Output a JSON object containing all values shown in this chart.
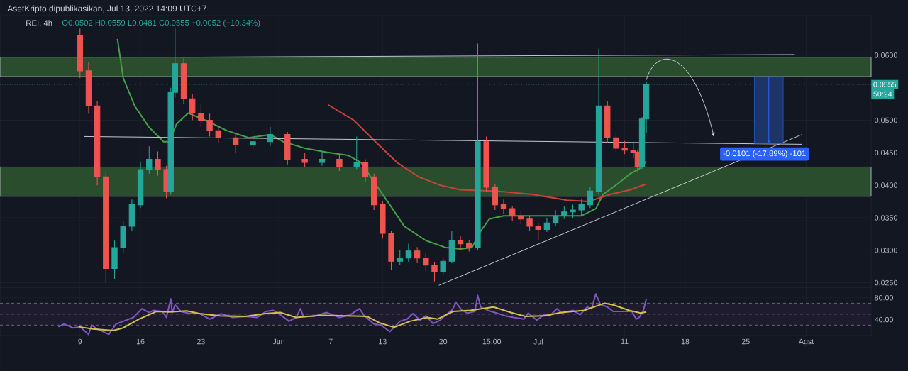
{
  "chart_data": [
    {
      "type": "candlestick",
      "title": "AsetKripto dipublikasikan, Jul 13, 2022 14:09 UTC+7",
      "subtitle": "REI, 4h",
      "annotations": [
        "O0.0502 H0.0559 L0.0481 C0.0555 +0.0052 (+10.34%)",
        "50:24",
        {
          "text": "-0.0101 (-17.89%) -101",
          "x": "2022-07-27T04:00",
          "y": 0.0448
        }
      ],
      "xlim": [
        "2022-04-29T18:00",
        "2022-08-08T12:00"
      ],
      "xticks": [
        {
          "value": "2022-05-09",
          "label": null
        },
        {
          "value": "2022-05-16",
          "label": null
        },
        {
          "value": "2022-05-23",
          "label": null
        },
        {
          "value": "2022-06-01",
          "label": null
        },
        {
          "value": "2022-06-07",
          "label": null
        },
        {
          "value": "2022-06-13",
          "label": null
        },
        {
          "value": "2022-06-20",
          "label": null
        },
        {
          "value": "2022-06-25T15:00",
          "label": null
        },
        {
          "value": "2022-07-01",
          "label": null
        },
        {
          "value": "2022-07-11",
          "label": null
        },
        {
          "value": "2022-07-18",
          "label": null
        },
        {
          "value": "2022-07-25",
          "label": null
        },
        {
          "value": "2022-08-01",
          "label": null
        }
      ],
      "ylim": [
        0.0243,
        0.0661
      ],
      "yticks": [
        {
          "value": 0.025,
          "label": "0.0250"
        },
        {
          "value": 0.03,
          "label": "0.0300"
        },
        {
          "value": 0.035,
          "label": "0.0350"
        },
        {
          "value": 0.04,
          "label": "0.0400"
        },
        {
          "value": 0.045,
          "label": "0.0450"
        },
        {
          "value": 0.05,
          "label": "0.0500"
        },
        {
          "value": 0.06,
          "label": "0.0600"
        }
      ],
      "tick_labels": "y",
      "grid": true,
      "ref_lines": [
        {
          "axis": "y",
          "value": 0.0555,
          "label": "0.0555",
          "color": "#26a69a",
          "line_style": "dotted"
        }
      ],
      "bands": [
        {
          "axis": "y",
          "from": 0.0567,
          "to": 0.0597,
          "color": "#2a4d2e"
        },
        {
          "axis": "y",
          "from": 0.0383,
          "to": 0.0428,
          "color": "#2a4d2e"
        }
      ],
      "series": [
        {
          "type": "line",
          "color": "#43a047",
          "x": [
            "2022-05-13T08:00",
            "2022-05-14",
            "2022-05-15T08:00",
            "2022-05-17",
            "2022-05-18T16:00",
            "2022-05-19T08:00",
            "2022-05-20T04:00",
            "2022-05-21T12:00",
            "2022-05-23T12:00",
            "2022-05-26",
            "2022-05-28T12:00",
            "2022-05-31",
            "2022-06-01T12:00",
            "2022-06-04",
            "2022-06-06T12:00",
            "2022-06-09",
            "2022-06-10T12:00",
            "2022-06-12T04:00",
            "2022-06-13T20:00",
            "2022-06-15T12:00",
            "2022-06-18",
            "2022-06-20T08:00",
            "2022-06-22",
            "2022-06-23T08:00",
            "2022-06-24T04:00",
            "2022-06-25T08:00",
            "2022-06-27",
            "2022-06-29T12:00",
            "2022-07-02T16:00",
            "2022-07-06",
            "2022-07-07T16:00",
            "2022-07-08T12:00",
            "2022-07-10T04:00",
            "2022-07-11T16:00",
            "2022-07-12T16:00",
            "2022-07-13T12:00"
          ],
          "values": [
            0.0625,
            0.0565,
            0.0522,
            0.0489,
            0.0467,
            0.0467,
            0.0494,
            0.0511,
            0.05,
            0.0484,
            0.0473,
            0.0478,
            0.0467,
            0.0457,
            0.0451,
            0.0446,
            0.0435,
            0.0402,
            0.037,
            0.0337,
            0.0315,
            0.0304,
            0.0302,
            0.0304,
            0.0326,
            0.0348,
            0.0353,
            0.0353,
            0.0353,
            0.0353,
            0.0364,
            0.0386,
            0.0402,
            0.0418,
            0.0425,
            0.0437
          ]
        },
        {
          "type": "line",
          "color": "#c8433a",
          "x": [
            "2022-06-06T16:00",
            "2022-06-09T16:00",
            "2022-06-12T04:00",
            "2022-06-14T16:00",
            "2022-06-17T04:00",
            "2022-06-19T16:00",
            "2022-06-22",
            "2022-06-26T04:00",
            "2022-06-30T08:00",
            "2022-07-04T08:00",
            "2022-07-06T20:00",
            "2022-07-09T08:00",
            "2022-07-11T16:00",
            "2022-07-13T12:00"
          ],
          "values": [
            0.0524,
            0.05,
            0.0467,
            0.0435,
            0.0413,
            0.04,
            0.0393,
            0.0391,
            0.0386,
            0.0377,
            0.0375,
            0.0386,
            0.0393,
            0.0402
          ]
        },
        {
          "type": "line",
          "color": "#d1d4dc",
          "x": [
            "2022-05-20T16:00",
            "2022-07-30T16:00"
          ],
          "values": [
            0.0597,
            0.0601
          ]
        },
        {
          "type": "line",
          "color": "#d1d4dc",
          "x": [
            "2022-05-09T12:00",
            "2022-07-31T12:00"
          ],
          "values": [
            0.0475,
            0.0463
          ]
        },
        {
          "type": "line",
          "color": "#d1d4dc",
          "x": [
            "2022-06-19T12:00",
            "2022-07-31T12:00"
          ],
          "values": [
            0.0246,
            0.0478
          ]
        },
        {
          "type": "candlestick",
          "x": [
            "2022-05-09",
            "2022-05-10",
            "2022-05-11",
            "2022-05-12",
            "2022-05-13",
            "2022-05-14",
            "2022-05-15",
            "2022-05-16",
            "2022-05-17",
            "2022-05-18",
            "2022-05-19",
            "2022-05-19T12:00",
            "2022-05-20",
            "2022-05-21",
            "2022-05-22",
            "2022-05-23",
            "2022-05-24",
            "2022-05-25",
            "2022-05-27",
            "2022-05-29",
            "2022-05-31",
            "2022-06-02",
            "2022-06-04",
            "2022-06-06",
            "2022-06-08",
            "2022-06-10",
            "2022-06-11",
            "2022-06-12",
            "2022-06-13",
            "2022-06-14",
            "2022-06-15",
            "2022-06-16",
            "2022-06-17",
            "2022-06-18",
            "2022-06-19",
            "2022-06-20",
            "2022-06-21",
            "2022-06-22",
            "2022-06-23",
            "2022-06-24",
            "2022-06-25",
            "2022-06-26",
            "2022-06-27",
            "2022-06-28",
            "2022-06-29",
            "2022-06-30",
            "2022-07-01",
            "2022-07-02",
            "2022-07-03",
            "2022-07-04",
            "2022-07-05",
            "2022-07-06",
            "2022-07-07",
            "2022-07-08",
            "2022-07-09",
            "2022-07-10",
            "2022-07-11",
            "2022-07-12",
            "2022-07-12T12:00",
            "2022-07-13",
            "2022-07-13T12:00"
          ],
          "ohlc": [
            [
              0.063,
              0.0641,
              0.0565,
              0.0576
            ],
            [
              0.0576,
              0.059,
              0.051,
              0.0522
            ],
            [
              0.0522,
              0.053,
              0.04,
              0.0413
            ],
            [
              0.0413,
              0.042,
              0.025,
              0.0272
            ],
            [
              0.0272,
              0.0315,
              0.0255,
              0.0304
            ],
            [
              0.0304,
              0.0345,
              0.0295,
              0.0337
            ],
            [
              0.0337,
              0.0378,
              0.033,
              0.037
            ],
            [
              0.037,
              0.0435,
              0.0365,
              0.0424
            ],
            [
              0.0424,
              0.046,
              0.0418,
              0.044
            ],
            [
              0.044,
              0.0452,
              0.0415,
              0.0424
            ],
            [
              0.0424,
              0.043,
              0.038,
              0.0391
            ],
            [
              0.0391,
              0.055,
              0.0385,
              0.0543
            ],
            [
              0.0543,
              0.0655,
              0.0535,
              0.0587
            ],
            [
              0.0587,
              0.0595,
              0.0525,
              0.0533
            ],
            [
              0.0533,
              0.054,
              0.05,
              0.0511
            ],
            [
              0.0511,
              0.0525,
              0.049,
              0.05
            ],
            [
              0.05,
              0.051,
              0.0475,
              0.0484
            ],
            [
              0.0484,
              0.0492,
              0.0465,
              0.0473
            ],
            [
              0.0473,
              0.048,
              0.045,
              0.0462
            ],
            [
              0.0462,
              0.0485,
              0.0455,
              0.0467
            ],
            [
              0.0467,
              0.049,
              0.046,
              0.0478
            ],
            [
              0.0478,
              0.0482,
              0.0432,
              0.044
            ],
            [
              0.044,
              0.045,
              0.0428,
              0.0435
            ],
            [
              0.0435,
              0.0452,
              0.043,
              0.044
            ],
            [
              0.044,
              0.0448,
              0.0422,
              0.0429
            ],
            [
              0.0429,
              0.0475,
              0.0425,
              0.0435
            ],
            [
              0.0435,
              0.044,
              0.0405,
              0.0413
            ],
            [
              0.0413,
              0.0418,
              0.0362,
              0.037
            ],
            [
              0.037,
              0.0375,
              0.0318,
              0.0326
            ],
            [
              0.0326,
              0.033,
              0.027,
              0.0283
            ],
            [
              0.0283,
              0.03,
              0.0278,
              0.0288
            ],
            [
              0.0288,
              0.031,
              0.0282,
              0.0299
            ],
            [
              0.0299,
              0.0305,
              0.028,
              0.0288
            ],
            [
              0.0288,
              0.0295,
              0.0268,
              0.0277
            ],
            [
              0.0277,
              0.0282,
              0.0252,
              0.0267
            ],
            [
              0.0267,
              0.029,
              0.0262,
              0.0283
            ],
            [
              0.0283,
              0.033,
              0.028,
              0.0315
            ],
            [
              0.0315,
              0.0322,
              0.03,
              0.031
            ],
            [
              0.031,
              0.0315,
              0.0298,
              0.0304
            ],
            [
              0.0304,
              0.0618,
              0.03,
              0.0467
            ],
            [
              0.0467,
              0.0475,
              0.039,
              0.0397
            ],
            [
              0.0397,
              0.0402,
              0.0362,
              0.037
            ],
            [
              0.037,
              0.0378,
              0.0356,
              0.0364
            ],
            [
              0.0364,
              0.0368,
              0.0345,
              0.0353
            ],
            [
              0.0353,
              0.036,
              0.034,
              0.0348
            ],
            [
              0.0348,
              0.0352,
              0.033,
              0.0337
            ],
            [
              0.0337,
              0.0342,
              0.0315,
              0.0332
            ],
            [
              0.0332,
              0.035,
              0.0328,
              0.0342
            ],
            [
              0.0342,
              0.0362,
              0.0338,
              0.0353
            ],
            [
              0.0353,
              0.0368,
              0.0348,
              0.0359
            ],
            [
              0.0359,
              0.037,
              0.035,
              0.0362
            ],
            [
              0.0362,
              0.0378,
              0.0352,
              0.037
            ],
            [
              0.037,
              0.0398,
              0.0365,
              0.0391
            ],
            [
              0.0391,
              0.061,
              0.0385,
              0.0522
            ],
            [
              0.0522,
              0.053,
              0.0465,
              0.0473
            ],
            [
              0.0473,
              0.048,
              0.045,
              0.0457
            ],
            [
              0.0457,
              0.0468,
              0.0448,
              0.0454
            ],
            [
              0.0454,
              0.0465,
              0.0442,
              0.0451
            ],
            [
              0.0451,
              0.0455,
              0.042,
              0.0429
            ],
            [
              0.0429,
              0.0505,
              0.0425,
              0.0502
            ],
            [
              0.0502,
              0.0559,
              0.0481,
              0.0555
            ]
          ]
        }
      ]
    },
    {
      "type": "line",
      "xlim": [
        "2022-04-29T18:00",
        "2022-08-08T12:00"
      ],
      "xticks": [
        {
          "value": "2022-05-09",
          "label": "9"
        },
        {
          "value": "2022-05-16",
          "label": "16"
        },
        {
          "value": "2022-05-23",
          "label": "23"
        },
        {
          "value": "2022-06-01",
          "label": "Jun"
        },
        {
          "value": "2022-06-07",
          "label": "7"
        },
        {
          "value": "2022-06-13",
          "label": "13"
        },
        {
          "value": "2022-06-20",
          "label": "20"
        },
        {
          "value": "2022-06-25T15:00",
          "label": "15:00"
        },
        {
          "value": "2022-07-01",
          "label": "Jul"
        },
        {
          "value": "2022-07-11",
          "label": "11"
        },
        {
          "value": "2022-07-18",
          "label": "18"
        },
        {
          "value": "2022-07-25",
          "label": "25"
        },
        {
          "value": "2022-08-01",
          "label": "Agst"
        }
      ],
      "ylim": [
        11,
        99
      ],
      "yticks": [
        {
          "value": 40,
          "label": "40.00"
        },
        {
          "value": 80,
          "label": "80.00"
        }
      ],
      "grid": true,
      "ref_lines": [
        {
          "axis": "y",
          "value": 70,
          "color": "#787b86",
          "line_style": "dashed"
        },
        {
          "axis": "y",
          "value": 50,
          "color": "#787b86",
          "line_style": "dashed"
        },
        {
          "axis": "y",
          "value": 30,
          "color": "#787b86",
          "line_style": "dashed"
        }
      ],
      "bands": [
        {
          "axis": "y",
          "from": 30,
          "to": 70,
          "color": "#1f1b2e"
        }
      ],
      "series": [
        {
          "color": "#7e57c2",
          "x": [
            "2022-05-06T12:00",
            "2022-05-07T04:00",
            "2022-05-08T04:00",
            "2022-05-09",
            "2022-05-10",
            "2022-05-10T08:00",
            "2022-05-11",
            "2022-05-12T08:00",
            "2022-05-13T04:00",
            "2022-05-14",
            "2022-05-15T04:00",
            "2022-05-16T04:00",
            "2022-05-17",
            "2022-05-17T12:00",
            "2022-05-18T12:00",
            "2022-05-19",
            "2022-05-19T12:00",
            "2022-05-19T16:00",
            "2022-05-20",
            "2022-05-20T16:00",
            "2022-05-21T16:00",
            "2022-05-22T20:00",
            "2022-05-24",
            "2022-05-25T08:00",
            "2022-05-26T16:00",
            "2022-05-28T04:00",
            "2022-05-29T12:00",
            "2022-05-30T12:00",
            "2022-05-31T08:00",
            "2022-05-31T20:00",
            "2022-06-02T04:00",
            "2022-06-03",
            "2022-06-03T12:00",
            "2022-06-03T20:00",
            "2022-06-05",
            "2022-06-06T12:00",
            "2022-06-08",
            "2022-06-09T04:00",
            "2022-06-10T08:00",
            "2022-06-10T20:00",
            "2022-06-12",
            "2022-06-12T20:00",
            "2022-06-13T20:00",
            "2022-06-15",
            "2022-06-15T20:00",
            "2022-06-16T12:00",
            "2022-06-17T08:00",
            "2022-06-18",
            "2022-06-18T20:00",
            "2022-06-19T16:00",
            "2022-06-20T08:00",
            "2022-06-21",
            "2022-06-21T12:00",
            "2022-06-22T04:00",
            "2022-06-22T20:00",
            "2022-06-23T16:00",
            "2022-06-24",
            "2022-06-24T08:00",
            "2022-06-25T04:00",
            "2022-06-26T04:00",
            "2022-06-27T04:00",
            "2022-06-28T04:00",
            "2022-06-29T08:00",
            "2022-06-29T20:00",
            "2022-06-30T20:00",
            "2022-07-01T16:00",
            "2022-07-02T08:00",
            "2022-07-03T04:00",
            "2022-07-03T16:00",
            "2022-07-05",
            "2022-07-05T20:00",
            "2022-07-06T16:00",
            "2022-07-07T04:00",
            "2022-07-07T16:00",
            "2022-07-08T04:00",
            "2022-07-09",
            "2022-07-09T16:00",
            "2022-07-10T20:00",
            "2022-07-11T20:00",
            "2022-07-12T08:00",
            "2022-07-12T16:00",
            "2022-07-13T04:00",
            "2022-07-13T12:00"
          ],
          "values": [
            27,
            32,
            25,
            27,
            13,
            30,
            23,
            13,
            32,
            37,
            44,
            60,
            53,
            57,
            55,
            44,
            78,
            53,
            67,
            55,
            51,
            51,
            41,
            51,
            44,
            46,
            44,
            55,
            57,
            53,
            37,
            44,
            60,
            46,
            46,
            53,
            44,
            48,
            60,
            48,
            32,
            30,
            18,
            37,
            41,
            51,
            39,
            47,
            33,
            39,
            49,
            57,
            71,
            57,
            52,
            55,
            84,
            63,
            57,
            52,
            47,
            44,
            41,
            52,
            39,
            49,
            47,
            60,
            52,
            57,
            49,
            63,
            60,
            87,
            68,
            63,
            55,
            55,
            55,
            41,
            44,
            57,
            78
          ]
        },
        {
          "color": "#d4c04a",
          "x": [
            "2022-05-08T20:00",
            "2022-05-10T12:00",
            "2022-05-12T20:00",
            "2022-05-14",
            "2022-05-15T20:00",
            "2022-05-17T20:00",
            "2022-05-19T08:00",
            "2022-05-21T08:00",
            "2022-05-22T20:00",
            "2022-05-25T04:00",
            "2022-05-28T04:00",
            "2022-05-30T12:00",
            "2022-06-01T04:00",
            "2022-06-03",
            "2022-06-05T20:00",
            "2022-06-08T20:00",
            "2022-06-11T04:00",
            "2022-06-12T16:00",
            "2022-06-14T08:00",
            "2022-06-16T04:00",
            "2022-06-18T04:00",
            "2022-06-19T08:00",
            "2022-06-21T04:00",
            "2022-06-23T04:00",
            "2022-06-25T20:00",
            "2022-06-27T20:00",
            "2022-06-29T12:00",
            "2022-07-01T16:00",
            "2022-07-03T16:00",
            "2022-07-06T08:00",
            "2022-07-08T16:00",
            "2022-07-09T16:00",
            "2022-07-11T12:00",
            "2022-07-12T20:00",
            "2022-07-13T12:00"
          ],
          "values": [
            27,
            23,
            20,
            25,
            41,
            55,
            54,
            56,
            51,
            47,
            46,
            51,
            53,
            44,
            48,
            47,
            46,
            34,
            26,
            37,
            44,
            41,
            55,
            57,
            63,
            53,
            46,
            47,
            53,
            57,
            70,
            67,
            57,
            52,
            54
          ]
        }
      ]
    }
  ]
}
